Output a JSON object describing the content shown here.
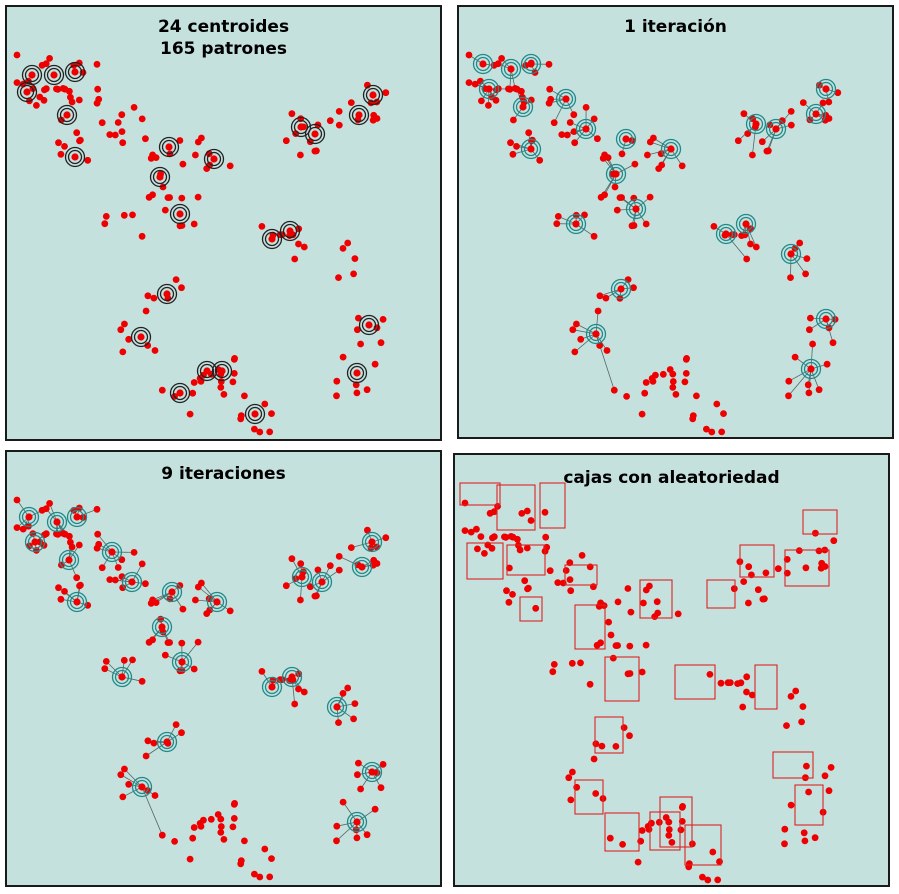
{
  "panels": [
    {
      "title_lines": [
        "24 centroides",
        "165 patrones"
      ]
    },
    {
      "title_lines": [
        "1 iteración"
      ]
    },
    {
      "title_lines": [
        "9 iteraciones"
      ]
    },
    {
      "title_lines": [
        "cajas con aleatoriedad"
      ]
    }
  ],
  "colors": {
    "background": "#c5e1de",
    "point": "#ee0000",
    "centroid_ring": "#222222",
    "centroid_ring_converged": "#1e8a8a",
    "link": "#556666",
    "box": "#dd2222"
  },
  "icons": [
    "pattern-point",
    "centroid-ring",
    "assignment-link",
    "random-box"
  ]
}
